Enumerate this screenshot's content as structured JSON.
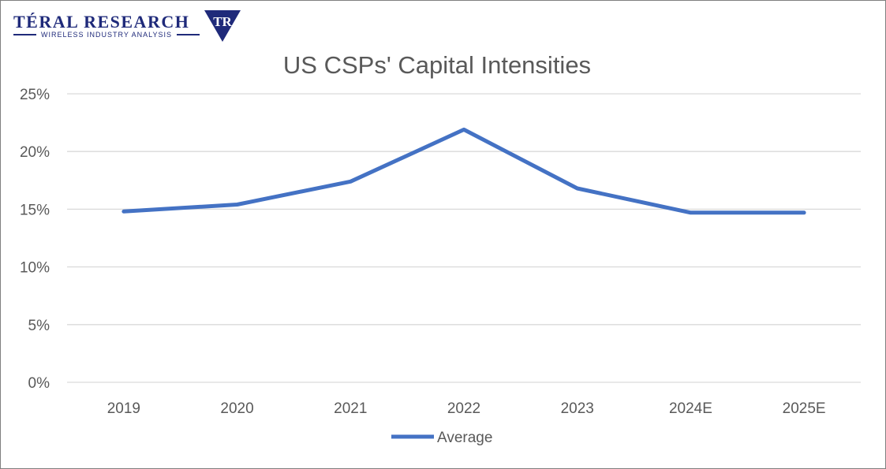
{
  "brand": {
    "name": "TÉRAL RESEARCH",
    "tagline": "WIRELESS INDUSTRY ANALYSIS",
    "mark_letters": "TR",
    "color": "#1f2a7a"
  },
  "chart_data": {
    "type": "line",
    "title": "US CSPs' Capital Intensities",
    "xlabel": "",
    "ylabel": "",
    "categories": [
      "2019",
      "2020",
      "2021",
      "2022",
      "2023",
      "2024E",
      "2025E"
    ],
    "series": [
      {
        "name": "Average",
        "values": [
          14.8,
          15.4,
          17.4,
          21.9,
          16.8,
          14.7,
          14.7
        ],
        "color": "#4472c4"
      }
    ],
    "ylim": [
      0,
      25
    ],
    "y_ticks": [
      {
        "value": 0,
        "label": "0%"
      },
      {
        "value": 5,
        "label": "5%"
      },
      {
        "value": 10,
        "label": "10%"
      },
      {
        "value": 15,
        "label": "15%"
      },
      {
        "value": 20,
        "label": "20%"
      },
      {
        "value": 25,
        "label": "25%"
      }
    ],
    "grid": true,
    "legend_position": "bottom"
  }
}
